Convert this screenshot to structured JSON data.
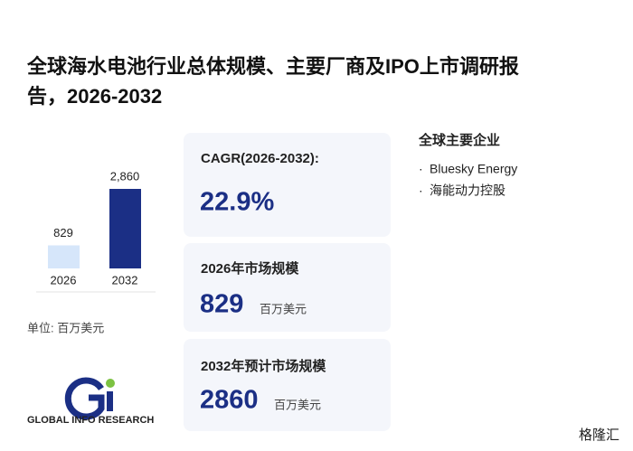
{
  "title": "全球海水电池行业总体规模、主要厂商及IPO上市调研报告，2026-2032",
  "chart_data": {
    "type": "bar",
    "categories": [
      "2026",
      "2032"
    ],
    "values": [
      829,
      2860
    ],
    "value_labels": [
      "829",
      "2,860"
    ],
    "colors": [
      "#d6e6fa",
      "#1b2f85"
    ],
    "unit_label": "单位: 百万美元"
  },
  "cards": [
    {
      "label": "CAGR(2026-2032):",
      "value": "22.9%"
    },
    {
      "label": "2026年市场规模",
      "value": 829,
      "unit": "百万美元"
    },
    {
      "label": "2032年预计市场规模",
      "value": 2860,
      "unit": "百万美元"
    }
  ],
  "companies": {
    "title": "全球主要企业",
    "items": [
      "Bluesky Energy",
      "海能动力控股"
    ]
  },
  "logo": "GLOBAL INFO RESEARCH",
  "watermark": "格隆汇"
}
